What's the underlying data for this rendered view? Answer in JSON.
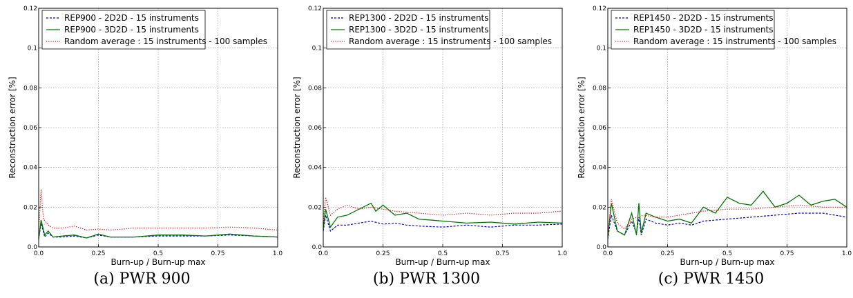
{
  "chart_data": [
    {
      "type": "line",
      "caption": "(a) PWR 900",
      "xlabel": "Burn-up / Burn-up max",
      "ylabel": "Reconstruction error [%]",
      "xlim": [
        0,
        1.0
      ],
      "ylim": [
        0,
        0.12
      ],
      "xticks": [
        "0.0",
        "0.25",
        "0.5",
        "0.75",
        "1.0"
      ],
      "yticks": [
        "0.0",
        "0.02",
        "0.04",
        "0.06",
        "0.08",
        "0.1",
        "0.12"
      ],
      "grid": true,
      "legend": "top-left",
      "series": [
        {
          "name": "REP900 - 2D2D - 15 instruments",
          "color": "#0000cc",
          "style": "dashed",
          "x": [
            0,
            0.01,
            0.025,
            0.04,
            0.06,
            0.1,
            0.15,
            0.2,
            0.25,
            0.3,
            0.4,
            0.5,
            0.6,
            0.7,
            0.8,
            0.9,
            1.0
          ],
          "y": [
            0.004,
            0.012,
            0.005,
            0.007,
            0.005,
            0.005,
            0.0055,
            0.0045,
            0.006,
            0.005,
            0.005,
            0.0055,
            0.0055,
            0.0055,
            0.006,
            0.0055,
            0.005
          ]
        },
        {
          "name": "REP900 - 3D2D - 15 instruments",
          "color": "#007700",
          "style": "solid",
          "x": [
            0,
            0.01,
            0.025,
            0.04,
            0.06,
            0.1,
            0.15,
            0.2,
            0.25,
            0.3,
            0.4,
            0.5,
            0.6,
            0.7,
            0.8,
            0.9,
            1.0
          ],
          "y": [
            0.004,
            0.0135,
            0.006,
            0.008,
            0.005,
            0.0055,
            0.006,
            0.0045,
            0.0065,
            0.005,
            0.005,
            0.006,
            0.006,
            0.0055,
            0.0065,
            0.0055,
            0.005
          ]
        },
        {
          "name": "Random average : 15 instruments - 100 samples",
          "color": "#ee0000",
          "style": "dotted",
          "x": [
            0,
            0.01,
            0.02,
            0.04,
            0.06,
            0.1,
            0.15,
            0.2,
            0.25,
            0.3,
            0.4,
            0.5,
            0.6,
            0.7,
            0.8,
            0.9,
            1.0
          ],
          "y": [
            0.008,
            0.029,
            0.014,
            0.011,
            0.0095,
            0.0095,
            0.0105,
            0.0085,
            0.009,
            0.0085,
            0.0095,
            0.0095,
            0.0095,
            0.0095,
            0.01,
            0.0095,
            0.0085
          ]
        }
      ]
    },
    {
      "type": "line",
      "caption": "(b) PWR 1300",
      "xlabel": "Burn-up / Burn-up max",
      "ylabel": "Reconstruction error [%]",
      "xlim": [
        0,
        1.0
      ],
      "ylim": [
        0,
        0.12
      ],
      "xticks": [
        "0.0",
        "0.25",
        "0.5",
        "0.75",
        "1.0"
      ],
      "yticks": [
        "0.0",
        "0.02",
        "0.04",
        "0.06",
        "0.08",
        "0.1",
        "0.12"
      ],
      "grid": true,
      "legend": "top-left",
      "series": [
        {
          "name": "REP1300 - 2D2D - 15 instruments",
          "color": "#0000cc",
          "style": "dashed",
          "x": [
            0,
            0.01,
            0.03,
            0.06,
            0.1,
            0.15,
            0.2,
            0.25,
            0.3,
            0.35,
            0.4,
            0.5,
            0.6,
            0.7,
            0.8,
            0.9,
            1.0
          ],
          "y": [
            0.008,
            0.016,
            0.008,
            0.011,
            0.011,
            0.012,
            0.013,
            0.0115,
            0.012,
            0.011,
            0.0105,
            0.01,
            0.011,
            0.01,
            0.011,
            0.011,
            0.0115
          ]
        },
        {
          "name": "REP1300 - 3D2D - 15 instruments",
          "color": "#007700",
          "style": "solid",
          "x": [
            0,
            0.01,
            0.03,
            0.06,
            0.1,
            0.15,
            0.2,
            0.22,
            0.25,
            0.3,
            0.35,
            0.4,
            0.5,
            0.6,
            0.7,
            0.8,
            0.9,
            1.0
          ],
          "y": [
            0.009,
            0.019,
            0.01,
            0.015,
            0.016,
            0.019,
            0.022,
            0.018,
            0.021,
            0.016,
            0.017,
            0.014,
            0.013,
            0.012,
            0.0125,
            0.0115,
            0.0125,
            0.012
          ]
        },
        {
          "name": "Random average : 15 instruments - 100 samples",
          "color": "#ee0000",
          "style": "dotted",
          "x": [
            0,
            0.01,
            0.03,
            0.06,
            0.1,
            0.15,
            0.2,
            0.25,
            0.3,
            0.4,
            0.5,
            0.6,
            0.7,
            0.8,
            0.9,
            1.0
          ],
          "y": [
            0.012,
            0.025,
            0.016,
            0.019,
            0.021,
            0.019,
            0.02,
            0.019,
            0.018,
            0.017,
            0.016,
            0.017,
            0.016,
            0.017,
            0.017,
            0.018
          ]
        }
      ]
    },
    {
      "type": "line",
      "caption": "(c) PWR 1450",
      "xlabel": "Burn-up / Burn-up max",
      "ylabel": "Reconstruction error [%]",
      "xlim": [
        0,
        1.0
      ],
      "ylim": [
        0,
        0.12
      ],
      "xticks": [
        "0.0",
        "0.25",
        "0.5",
        "0.75",
        "1.0"
      ],
      "yticks": [
        "0.0",
        "0.02",
        "0.04",
        "0.06",
        "0.08",
        "0.1",
        "0.12"
      ],
      "grid": true,
      "legend": "top-left",
      "series": [
        {
          "name": "REP1450 - 2D2D - 15 instruments",
          "color": "#0000cc",
          "style": "dashed",
          "x": [
            0,
            0.015,
            0.04,
            0.07,
            0.1,
            0.12,
            0.13,
            0.14,
            0.16,
            0.2,
            0.25,
            0.3,
            0.35,
            0.4,
            0.5,
            0.6,
            0.7,
            0.8,
            0.9,
            1.0
          ],
          "y": [
            0.004,
            0.016,
            0.008,
            0.006,
            0.013,
            0.007,
            0.015,
            0.006,
            0.014,
            0.012,
            0.011,
            0.012,
            0.011,
            0.013,
            0.014,
            0.015,
            0.016,
            0.017,
            0.017,
            0.015
          ]
        },
        {
          "name": "REP1450 - 3D2D - 15 instruments",
          "color": "#007700",
          "style": "solid",
          "x": [
            0,
            0.015,
            0.04,
            0.07,
            0.1,
            0.12,
            0.13,
            0.14,
            0.16,
            0.2,
            0.25,
            0.3,
            0.35,
            0.4,
            0.45,
            0.5,
            0.55,
            0.6,
            0.65,
            0.7,
            0.75,
            0.8,
            0.85,
            0.9,
            0.95,
            1.0
          ],
          "y": [
            0.005,
            0.022,
            0.008,
            0.006,
            0.017,
            0.006,
            0.022,
            0.007,
            0.017,
            0.015,
            0.013,
            0.014,
            0.012,
            0.02,
            0.017,
            0.025,
            0.022,
            0.021,
            0.028,
            0.02,
            0.022,
            0.026,
            0.021,
            0.023,
            0.024,
            0.02
          ]
        },
        {
          "name": "Random average : 15 instruments - 100 samples",
          "color": "#ee0000",
          "style": "dotted",
          "x": [
            0,
            0.015,
            0.04,
            0.07,
            0.1,
            0.15,
            0.2,
            0.25,
            0.3,
            0.4,
            0.5,
            0.6,
            0.7,
            0.8,
            0.9,
            1.0
          ],
          "y": [
            0.006,
            0.024,
            0.012,
            0.009,
            0.014,
            0.016,
            0.015,
            0.015,
            0.016,
            0.018,
            0.019,
            0.019,
            0.02,
            0.021,
            0.02,
            0.02
          ]
        }
      ]
    }
  ]
}
